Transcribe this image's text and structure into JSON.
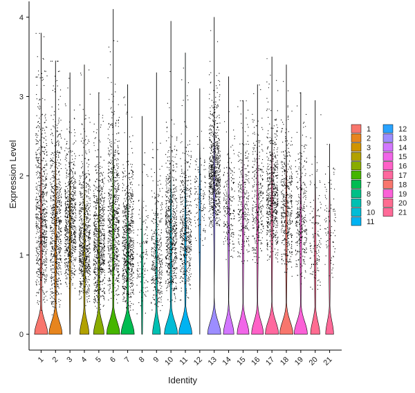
{
  "chart_data": {
    "type": "violin",
    "title": "",
    "xlabel": "Identity",
    "ylabel": "Expression Level",
    "ylim": [
      -0.2,
      4.2
    ],
    "yticks": [
      0,
      1,
      2,
      3,
      4
    ],
    "grid": false,
    "legend_position": "right",
    "jitter_points": true,
    "categories": [
      "1",
      "2",
      "3",
      "4",
      "5",
      "6",
      "7",
      "8",
      "9",
      "10",
      "11",
      "12",
      "13",
      "14",
      "15",
      "16",
      "17",
      "18",
      "19",
      "20",
      "21"
    ],
    "colors": [
      "#F8766D",
      "#E7851E",
      "#D09400",
      "#B2A100",
      "#89AC00",
      "#45B500",
      "#00BC51",
      "#00C087",
      "#00C0B2",
      "#00BCD6",
      "#00B3F2",
      "#29A3FF",
      "#9C8DFF",
      "#D277FF",
      "#F166E8",
      "#FF61C7",
      "#FF689E",
      "#F8766D",
      "#FB61D7",
      "#FF6C91",
      "#FF6A98"
    ],
    "series": [
      {
        "name": "1",
        "max": 3.8,
        "n": 2400,
        "base": 0.6,
        "spread": 1.35,
        "bumpScale": 1.0
      },
      {
        "name": "2",
        "max": 3.45,
        "n": 1900,
        "base": 0.55,
        "spread": 1.3,
        "bumpScale": 1.0
      },
      {
        "name": "3",
        "max": 3.3,
        "n": 700,
        "base": 0.75,
        "spread": 0.95,
        "bumpScale": 0.0
      },
      {
        "name": "4",
        "max": 3.4,
        "n": 1400,
        "base": 0.55,
        "spread": 1.05,
        "bumpScale": 0.7
      },
      {
        "name": "5",
        "max": 3.05,
        "n": 1200,
        "base": 0.5,
        "spread": 1.0,
        "bumpScale": 0.8
      },
      {
        "name": "6",
        "max": 4.1,
        "n": 1600,
        "base": 0.65,
        "spread": 1.2,
        "bumpScale": 1.0
      },
      {
        "name": "7",
        "max": 3.15,
        "n": 900,
        "base": 0.45,
        "spread": 1.0,
        "bumpScale": 1.0
      },
      {
        "name": "8",
        "max": 2.75,
        "n": 120,
        "base": 0.4,
        "spread": 0.85,
        "bumpScale": 0.0
      },
      {
        "name": "9",
        "max": 3.3,
        "n": 350,
        "base": 0.45,
        "spread": 0.85,
        "bumpScale": 0.6
      },
      {
        "name": "10",
        "max": 3.95,
        "n": 650,
        "base": 0.6,
        "spread": 1.05,
        "bumpScale": 1.0
      },
      {
        "name": "11",
        "max": 3.55,
        "n": 500,
        "base": 0.65,
        "spread": 1.0,
        "bumpScale": 1.0
      },
      {
        "name": "12",
        "max": 3.1,
        "n": 120,
        "base": 1.2,
        "spread": 0.8,
        "bumpScale": 0.0
      },
      {
        "name": "13",
        "max": 4.0,
        "n": 700,
        "base": 1.45,
        "spread": 0.85,
        "bumpScale": 1.0
      },
      {
        "name": "14",
        "max": 3.25,
        "n": 200,
        "base": 1.1,
        "spread": 0.8,
        "bumpScale": 0.8
      },
      {
        "name": "15",
        "max": 2.95,
        "n": 250,
        "base": 1.05,
        "spread": 0.9,
        "bumpScale": 0.9
      },
      {
        "name": "16",
        "max": 3.15,
        "n": 280,
        "base": 1.05,
        "spread": 0.95,
        "bumpScale": 0.9
      },
      {
        "name": "17",
        "max": 3.5,
        "n": 600,
        "base": 1.1,
        "spread": 0.95,
        "bumpScale": 1.0
      },
      {
        "name": "18",
        "max": 3.4,
        "n": 420,
        "base": 0.95,
        "spread": 0.95,
        "bumpScale": 1.0
      },
      {
        "name": "19",
        "max": 3.05,
        "n": 300,
        "base": 0.85,
        "spread": 0.9,
        "bumpScale": 1.0
      },
      {
        "name": "20",
        "max": 2.95,
        "n": 130,
        "base": 0.7,
        "spread": 0.85,
        "bumpScale": 0.7
      },
      {
        "name": "21",
        "max": 2.4,
        "n": 90,
        "base": 0.8,
        "spread": 0.8,
        "bumpScale": 0.6
      }
    ]
  }
}
